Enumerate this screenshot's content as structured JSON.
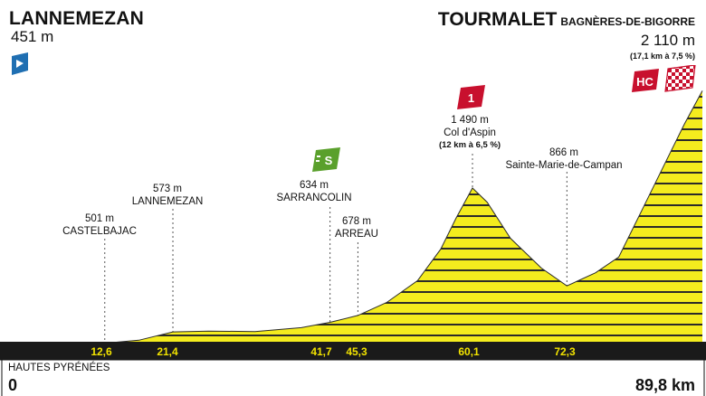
{
  "start": {
    "name": "LANNEMEZAN",
    "altitude": "451 m",
    "icon": "start-flag-icon"
  },
  "finish": {
    "name": "TOURMALET",
    "town": "BAGNÈRES-DE-BIGORRE",
    "altitude": "2 110 m",
    "gradient": "(17,1 km à 7,5 %)",
    "category_badge": "HC",
    "icon": "checkered-flag-icon"
  },
  "points": [
    {
      "key": "castelbajac",
      "alt": "501 m",
      "name": "CASTELBAJAC",
      "km": "12,6"
    },
    {
      "key": "lannemezan",
      "alt": "573 m",
      "name": "LANNEMEZAN",
      "km": "21,4"
    },
    {
      "key": "sarrancolin",
      "alt": "634 m",
      "name": "SARRANCOLIN",
      "km": "41,7",
      "badge": "S"
    },
    {
      "key": "arreau",
      "alt": "678 m",
      "name": "ARREAU",
      "km": "45,3"
    },
    {
      "key": "aspin",
      "alt": "1 490 m",
      "name": "Col d'Aspin",
      "gradient": "(12 km à 6,5 %)",
      "km": "60,1",
      "badge": "1"
    },
    {
      "key": "sainte-marie",
      "alt": "866 m",
      "name": "Sainte-Marie-de-Campan",
      "km": "72,3"
    }
  ],
  "footer": {
    "region": "HAUTES PYRÉNÉES",
    "km_start": "0",
    "km_end": "89,8 km"
  },
  "colors": {
    "profile_fill": "#f4ec1e",
    "profile_stripe": "#2a2a2a",
    "km_bar": "#1a1a1a",
    "km_text": "#f2e300",
    "hc_badge": "#c8102e",
    "cat1_badge": "#c8102e",
    "sprint_badge": "#5aa02c",
    "start_flag": "#1f6fb2"
  },
  "chart_data": {
    "type": "area",
    "x_unit": "km",
    "y_unit": "m",
    "x": [
      0,
      4,
      8,
      10,
      12.6,
      17,
      21.4,
      26,
      32,
      38,
      41.7,
      45.3,
      49,
      53,
      56,
      58,
      60.1,
      62,
      65,
      69,
      72.3,
      76,
      79,
      82,
      85,
      87.5,
      89.8
    ],
    "y": [
      451,
      440,
      430,
      445,
      501,
      520,
      573,
      578,
      575,
      600,
      634,
      678,
      760,
      900,
      1100,
      1300,
      1490,
      1400,
      1170,
      980,
      866,
      950,
      1050,
      1350,
      1650,
      1900,
      2110
    ],
    "xlim": [
      0,
      89.8
    ]
  }
}
